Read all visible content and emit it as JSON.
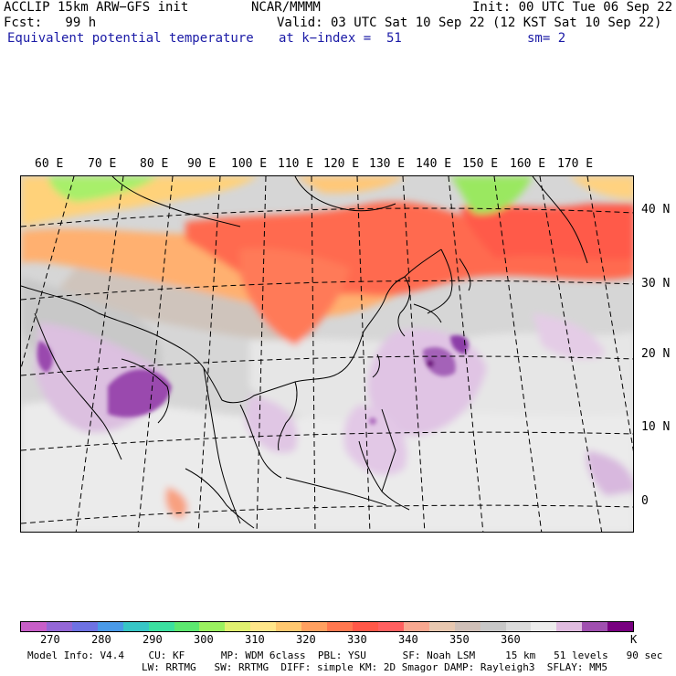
{
  "header": {
    "model": "ACCLIP 15km ARW−GFS init",
    "center": "NCAR/MMMM",
    "init": "Init: 00 UTC Tue 06 Sep 22",
    "fcst": "Fcst:   99 h",
    "valid": "Valid: 03 UTC Sat 10 Sep 22 (12 KST Sat 10 Sep 22)",
    "field": "Equivalent potential temperature",
    "level": "at k−index =  51",
    "smooth": "sm= 2"
  },
  "map": {
    "lon_labels": [
      "60 E",
      "70 E",
      "80 E",
      "90 E",
      "100 E",
      "110 E",
      "120 E",
      "130 E",
      "140 E",
      "150 E",
      "160 E",
      "170 E"
    ],
    "lat_labels": [
      "40 N",
      "30 N",
      "20 N",
      "10 N",
      "0"
    ]
  },
  "colorbar": {
    "labels": [
      "270",
      "280",
      "290",
      "300",
      "310",
      "320",
      "330",
      "340",
      "350",
      "360"
    ],
    "unit": "K",
    "colors": [
      "#c85fc8",
      "#9467d6",
      "#6e72e3",
      "#4a9ae8",
      "#37c6c6",
      "#3ce0a0",
      "#5ce870",
      "#9af060",
      "#e0f070",
      "#ffe68a",
      "#ffc870",
      "#ffa060",
      "#ff7850",
      "#ff5848",
      "#ff6060",
      "#f8a890",
      "#e8c8b0",
      "#d0c0b8",
      "#c8c8c8",
      "#dcdcdc",
      "#ececec",
      "#e0bce0",
      "#a050b0",
      "#780080"
    ]
  },
  "footer": {
    "line1": "Model Info: V4.4    CU: KF      MP: WDM 6class  PBL: YSU      SF: Noah LSM     15 km   51 levels   90 sec",
    "line2": "LW: RRTMG   SW: RRTMG  DIFF: simple KM: 2D Smagor DAMP: Rayleigh3  SFLAY: MM5"
  }
}
